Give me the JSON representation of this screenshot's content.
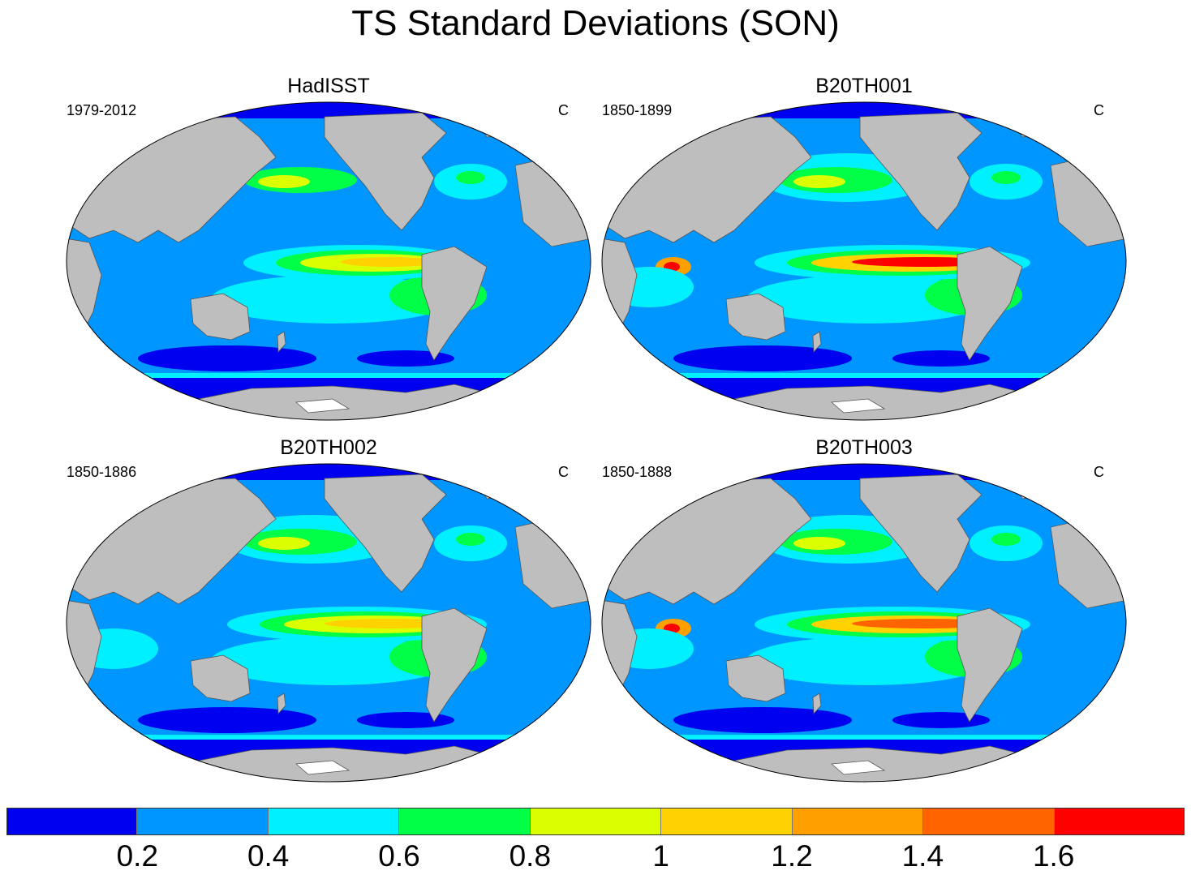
{
  "title": "TS Standard Deviations (SON)",
  "panels": [
    {
      "title": "HadISST",
      "left_label": "1979-2012",
      "right_label": "C"
    },
    {
      "title": "B20TH001",
      "left_label": "1850-1899",
      "right_label": "C"
    },
    {
      "title": "B20TH002",
      "left_label": "1850-1886",
      "right_label": "C"
    },
    {
      "title": "B20TH003",
      "left_label": "1850-1888",
      "right_label": "C"
    }
  ],
  "colorbar": {
    "labels": [
      "0.2",
      "0.4",
      "0.6",
      "0.8",
      "1",
      "1.2",
      "1.4",
      "1.6"
    ],
    "colors": [
      "#0000f0",
      "#0096ff",
      "#00f0ff",
      "#00ff46",
      "#dcff00",
      "#ffd200",
      "#ffa000",
      "#ff6400",
      "#ff0000"
    ]
  },
  "land_color": "#bebebe",
  "ocean_base_color": "#0096ff"
}
